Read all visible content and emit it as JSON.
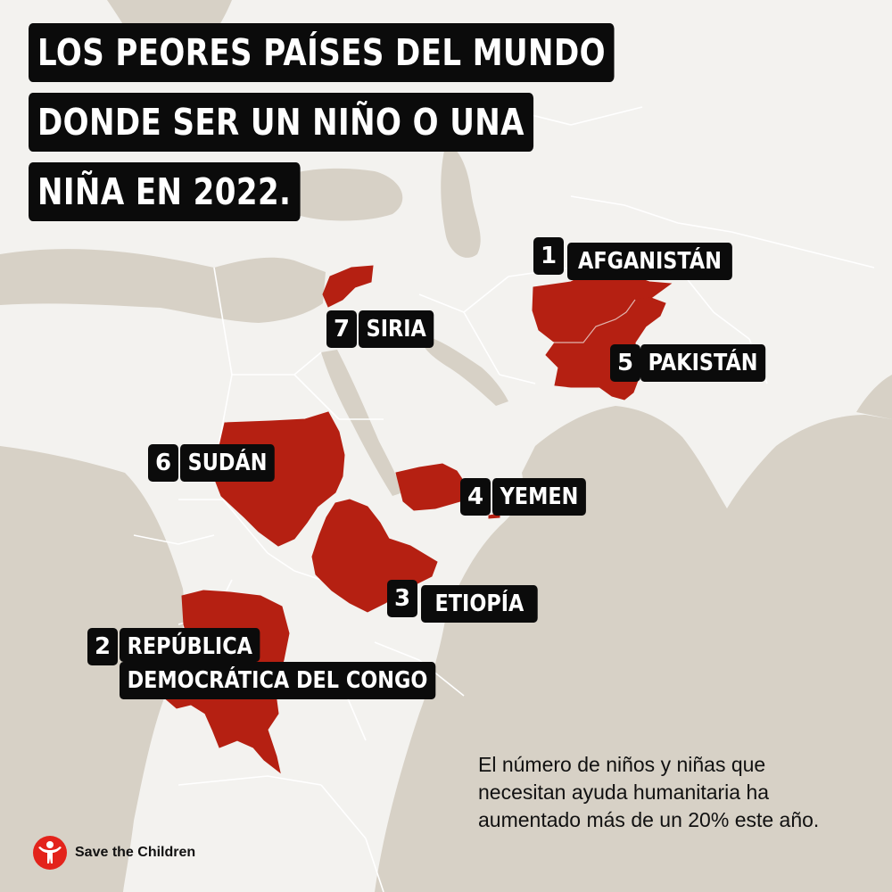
{
  "title": {
    "line1": "LOS PEORES PAÍSES DEL MUNDO",
    "line2": "DONDE SER UN NIÑO O UNA",
    "line3": "NIÑA EN 2022."
  },
  "countries": [
    {
      "rank": "1",
      "name": "AFGANISTÁN"
    },
    {
      "rank": "2",
      "name_line1": "REPÚBLICA",
      "name_line2": "DEMOCRÁTICA DEL CONGO"
    },
    {
      "rank": "3",
      "name": "ETIOPÍA"
    },
    {
      "rank": "4",
      "name": "YEMEN"
    },
    {
      "rank": "5",
      "name": "PAKISTÁN"
    },
    {
      "rank": "6",
      "name": "SUDÁN"
    },
    {
      "rank": "7",
      "name": "SIRIA"
    }
  ],
  "caption": {
    "line1": "El número de niños y niñas que",
    "line2": "necesitan ayuda humanitaria ha",
    "line3": "aumentado más de un 20% este año."
  },
  "logo": {
    "text": "Save the Children",
    "icon": "save-the-children-logo-icon"
  },
  "colors": {
    "highlight": "#b52012",
    "sea": "#d7d1c6",
    "land": "#f3f2ef",
    "label_bg": "#0b0b0b",
    "logo": "#e3231b"
  }
}
